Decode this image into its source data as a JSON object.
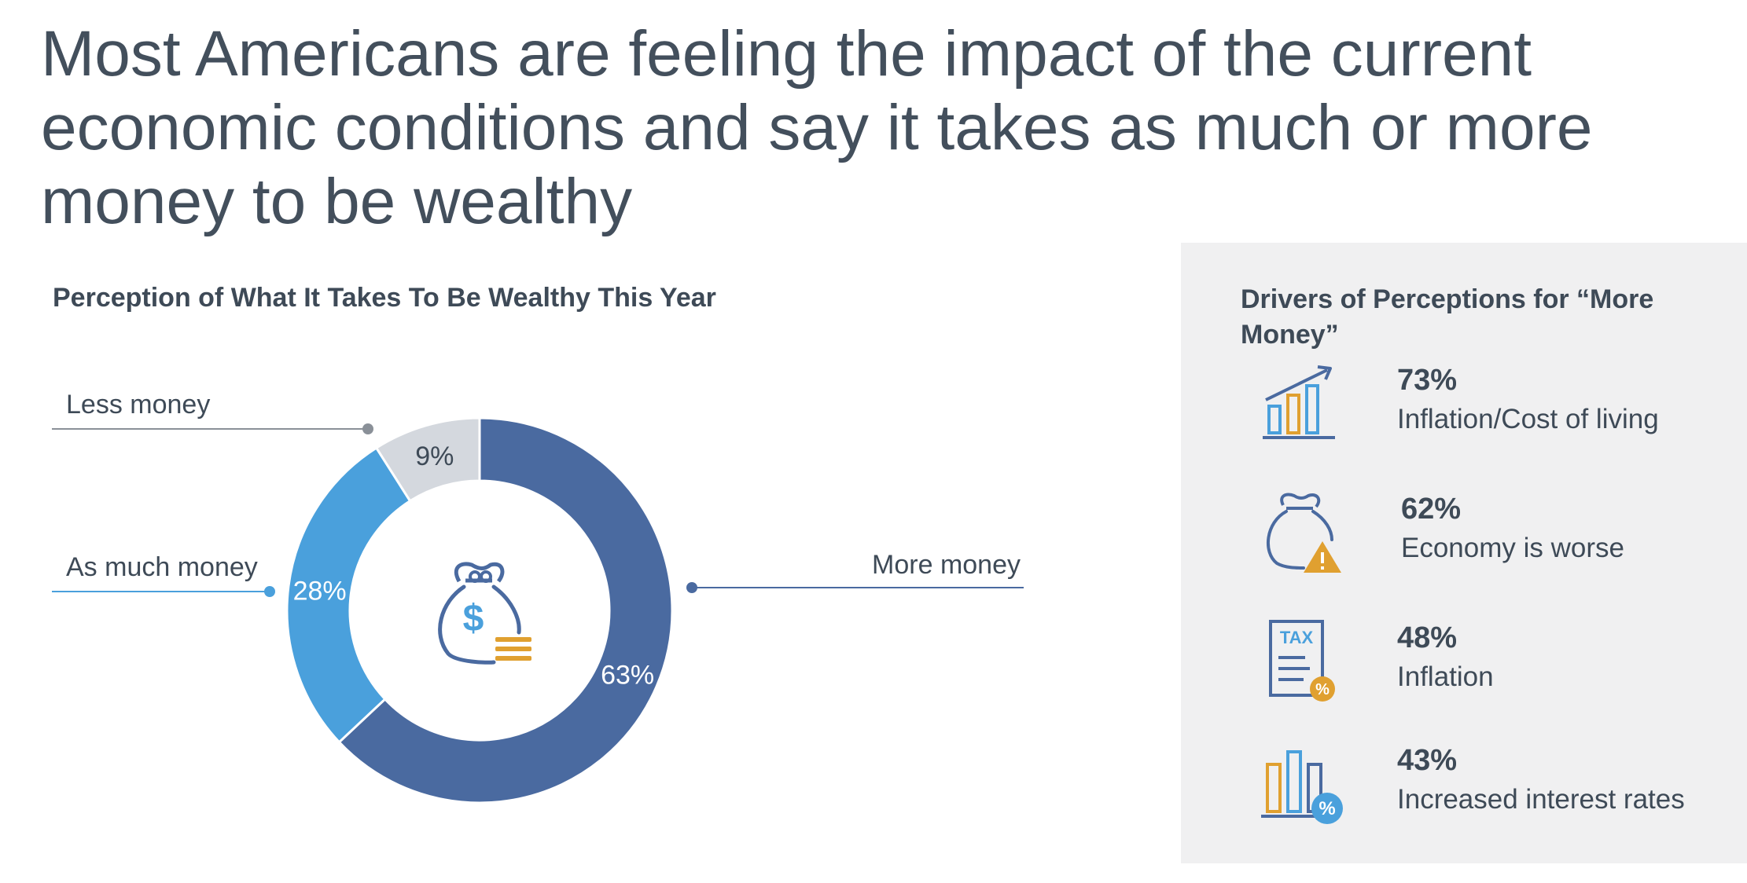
{
  "headline": "Most Americans are feeling the impact of the current economic conditions and say it takes as much or more money to be wealthy",
  "chart_data": {
    "type": "pie",
    "title": "Perception of What It Takes To Be Wealthy This Year",
    "slices": [
      {
        "label": "More money",
        "value": 63,
        "display": "63%",
        "color": "#4a6aa0",
        "text_color": "#ffffff"
      },
      {
        "label": "As much money",
        "value": 28,
        "display": "28%",
        "color": "#4aa0dc",
        "text_color": "#ffffff"
      },
      {
        "label": "Less money",
        "value": 9,
        "display": "9%",
        "color": "#d4d8de",
        "text_color": "#3e4a57"
      }
    ],
    "center_icon": "money-bag-icon"
  },
  "drivers": {
    "title": "Drivers of Perceptions for “More Money”",
    "items": [
      {
        "value": 73,
        "pct": "73%",
        "label": "Inflation/Cost of living",
        "icon": "rising-bar-chart-icon"
      },
      {
        "value": 62,
        "pct": "62%",
        "label": "Economy is worse",
        "icon": "money-bag-warning-icon"
      },
      {
        "value": 48,
        "pct": "48%",
        "label": "Inflation",
        "icon": "tax-document-icon"
      },
      {
        "value": 43,
        "pct": "43%",
        "label": "Increased interest rates",
        "icon": "bar-chart-percent-icon"
      }
    ]
  },
  "colors": {
    "dark_blue": "#4a6aa0",
    "light_blue": "#4aa0dc",
    "gray": "#d4d8de",
    "gold": "#e0a030",
    "panel_bg": "#f0f0f1",
    "text": "#3e4a57"
  }
}
